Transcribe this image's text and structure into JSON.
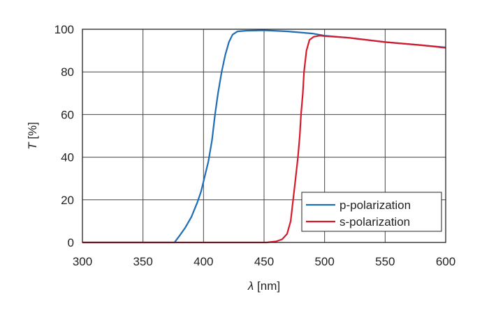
{
  "chart_data": {
    "type": "line",
    "title": "",
    "xlabel_symbol": "λ",
    "xlabel_unit": "[nm]",
    "ylabel_symbol": "T",
    "ylabel_unit": "[%]",
    "xlim": [
      300,
      600
    ],
    "ylim": [
      0,
      100
    ],
    "xticks": [
      "300",
      "350",
      "400",
      "450",
      "500",
      "550",
      "600"
    ],
    "yticks": [
      "0",
      "20",
      "40",
      "60",
      "80",
      "100"
    ],
    "grid": true,
    "legend_position": "bottom-right",
    "series": [
      {
        "name": "p-polarization",
        "color": "#1f6db5",
        "points": [
          [
            300,
            0
          ],
          [
            376,
            0
          ],
          [
            380,
            3
          ],
          [
            385,
            7
          ],
          [
            390,
            12
          ],
          [
            395,
            19
          ],
          [
            398,
            24
          ],
          [
            401,
            31
          ],
          [
            404,
            38
          ],
          [
            407,
            48
          ],
          [
            409.5,
            60
          ],
          [
            412,
            70
          ],
          [
            415,
            80
          ],
          [
            418,
            88
          ],
          [
            421,
            94
          ],
          [
            424,
            97.5
          ],
          [
            428,
            99
          ],
          [
            435,
            99.3
          ],
          [
            450,
            99.5
          ],
          [
            470,
            99
          ],
          [
            490,
            98
          ],
          [
            500,
            97
          ],
          [
            520,
            96
          ],
          [
            550,
            94
          ],
          [
            580,
            92.5
          ],
          [
            600,
            91.5
          ]
        ]
      },
      {
        "name": "s-polarization",
        "color": "#d7192b",
        "points": [
          [
            300,
            0
          ],
          [
            452,
            0
          ],
          [
            460,
            0.5
          ],
          [
            465,
            1.5
          ],
          [
            469,
            4
          ],
          [
            472,
            10
          ],
          [
            474,
            20
          ],
          [
            476,
            30
          ],
          [
            478,
            40
          ],
          [
            479.5,
            50
          ],
          [
            480.5,
            60
          ],
          [
            482,
            70
          ],
          [
            483,
            80
          ],
          [
            485,
            90
          ],
          [
            487.5,
            95
          ],
          [
            491,
            96.5
          ],
          [
            496,
            97
          ],
          [
            500,
            96.8
          ],
          [
            520,
            96
          ],
          [
            550,
            94
          ],
          [
            580,
            92.5
          ],
          [
            600,
            91.3
          ]
        ]
      }
    ]
  }
}
